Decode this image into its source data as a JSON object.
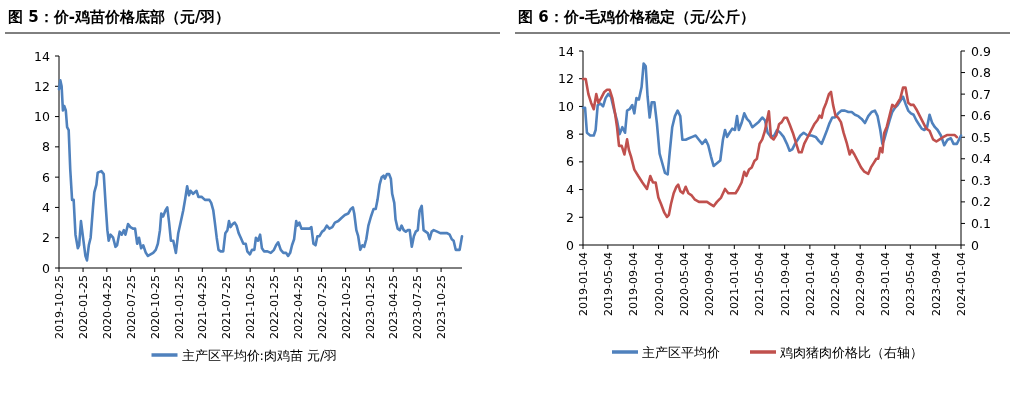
{
  "chart_data": [
    {
      "type": "line",
      "title": "图 5：价-鸡苗价格底部（元/羽）",
      "legend": "bottom",
      "xlim": [
        "2019-10-25",
        "2024-01-13"
      ],
      "ylim": [
        0,
        14
      ],
      "yticks": [
        0,
        2,
        4,
        6,
        8,
        10,
        12,
        14
      ],
      "xticks": [
        "2019-10-25",
        "2020-01-25",
        "2020-04-25",
        "2020-07-25",
        "2020-10-25",
        "2021-01-25",
        "2021-04-25",
        "2021-07-25",
        "2021-10-25",
        "2022-01-25",
        "2022-04-25",
        "2022-07-25",
        "2022-10-25",
        "2023-01-25",
        "2023-04-25",
        "2023-07-25",
        "2023-10-25"
      ],
      "x": [
        "2019-10-25",
        "2019-10-30",
        "2019-11-04",
        "2019-11-09",
        "2019-11-14",
        "2019-11-20",
        "2019-11-25",
        "2019-12-01",
        "2019-12-07",
        "2019-12-14",
        "2019-12-20",
        "2019-12-27",
        "2020-01-05",
        "2020-01-10",
        "2020-01-17",
        "2020-01-25",
        "2020-02-03",
        "2020-02-09",
        "2020-02-16",
        "2020-02-23",
        "2020-03-03",
        "2020-03-08",
        "2020-03-16",
        "2020-03-21",
        "2020-04-04",
        "2020-04-13",
        "2020-04-21",
        "2020-04-27",
        "2020-05-02",
        "2020-05-09",
        "2020-05-19",
        "2020-05-28",
        "2020-06-03",
        "2020-06-13",
        "2020-06-21",
        "2020-06-29",
        "2020-07-05",
        "2020-07-15",
        "2020-07-24",
        "2020-08-03",
        "2020-08-11",
        "2020-08-19",
        "2020-08-26",
        "2020-09-03",
        "2020-09-11",
        "2020-09-21",
        "2020-09-29",
        "2020-10-09",
        "2020-10-19",
        "2020-10-29",
        "2020-11-06",
        "2020-11-14",
        "2020-11-19",
        "2020-11-26",
        "2020-12-05",
        "2020-12-12",
        "2020-12-19",
        "2020-12-26",
        "2021-01-04",
        "2021-01-14",
        "2021-01-23",
        "2021-02-01",
        "2021-02-11",
        "2021-02-19",
        "2021-02-26",
        "2021-03-05",
        "2021-03-11",
        "2021-03-21",
        "2021-04-03",
        "2021-04-10",
        "2021-04-22",
        "2021-05-05",
        "2021-05-22",
        "2021-05-29",
        "2021-06-06",
        "2021-06-12",
        "2021-06-19",
        "2021-06-26",
        "2021-07-04",
        "2021-07-14",
        "2021-07-22",
        "2021-07-30",
        "2021-08-05",
        "2021-08-11",
        "2021-08-19",
        "2021-08-27",
        "2021-09-03",
        "2021-09-11",
        "2021-09-19",
        "2021-09-29",
        "2021-10-08",
        "2021-10-14",
        "2021-10-24",
        "2021-11-01",
        "2021-11-10",
        "2021-11-16",
        "2021-11-24",
        "2021-12-02",
        "2021-12-09",
        "2021-12-17",
        "2021-12-30",
        "2022-01-12",
        "2022-01-24",
        "2022-02-01",
        "2022-02-09",
        "2022-02-19",
        "2022-03-01",
        "2022-03-11",
        "2022-03-19",
        "2022-03-27",
        "2022-04-03",
        "2022-04-11",
        "2022-04-19",
        "2022-04-24",
        "2022-05-01",
        "2022-05-09",
        "2022-05-19",
        "2022-05-30",
        "2022-06-09",
        "2022-06-16",
        "2022-06-24",
        "2022-07-02",
        "2022-07-09",
        "2022-07-17",
        "2022-07-27",
        "2022-08-04",
        "2022-08-14",
        "2022-08-24",
        "2022-09-04",
        "2022-09-14",
        "2022-09-27",
        "2022-10-09",
        "2022-10-22",
        "2022-11-04",
        "2022-11-14",
        "2022-11-22",
        "2022-11-27",
        "2022-12-05",
        "2022-12-12",
        "2022-12-20",
        "2022-12-28",
        "2023-01-04",
        "2023-01-12",
        "2023-01-20",
        "2023-01-30",
        "2023-02-09",
        "2023-02-17",
        "2023-02-24",
        "2023-03-04",
        "2023-03-12",
        "2023-03-19",
        "2023-03-24",
        "2023-04-01",
        "2023-04-09",
        "2023-04-16",
        "2023-04-21",
        "2023-04-29",
        "2023-05-04",
        "2023-05-12",
        "2023-05-20",
        "2023-05-27",
        "2023-06-04",
        "2023-06-12",
        "2023-06-19",
        "2023-06-27",
        "2023-07-05",
        "2023-07-13",
        "2023-07-20",
        "2023-07-28",
        "2023-08-04",
        "2023-08-12",
        "2023-08-19",
        "2023-08-27",
        "2023-09-04",
        "2023-09-11",
        "2023-09-19",
        "2023-09-27",
        "2023-10-10",
        "2023-10-22",
        "2023-11-04",
        "2023-11-17",
        "2023-11-27",
        "2023-12-05",
        "2023-12-12",
        "2023-12-20",
        "2023-12-28",
        "2024-01-04",
        "2024-01-13"
      ],
      "series": [
        {
          "name": "主产区平均价:肉鸡苗 元/羽",
          "color": "#4f81bd",
          "values": [
            11.8,
            12.4,
            12.0,
            10.4,
            10.7,
            10.4,
            9.3,
            9.1,
            6.5,
            4.5,
            4.5,
            2.2,
            1.3,
            1.5,
            3.1,
            2.0,
            0.8,
            0.5,
            1.5,
            2.0,
            4.0,
            5.0,
            5.5,
            6.3,
            6.4,
            6.2,
            4.0,
            2.5,
            1.8,
            2.2,
            2.0,
            1.4,
            1.5,
            2.4,
            2.2,
            2.5,
            2.2,
            2.9,
            2.7,
            2.6,
            2.6,
            1.6,
            2.0,
            1.3,
            1.5,
            1.0,
            0.8,
            0.9,
            1.0,
            1.2,
            1.6,
            2.5,
            3.6,
            3.4,
            3.8,
            4.0,
            3.0,
            1.8,
            1.8,
            1.0,
            2.3,
            3.0,
            3.8,
            4.6,
            5.4,
            4.8,
            5.1,
            4.9,
            5.1,
            4.7,
            4.7,
            4.5,
            4.5,
            4.3,
            3.8,
            3.0,
            2.0,
            1.2,
            1.1,
            1.1,
            2.3,
            2.5,
            3.1,
            2.7,
            2.9,
            3.0,
            2.8,
            2.3,
            2.0,
            1.6,
            1.6,
            1.1,
            0.9,
            1.2,
            1.2,
            2.0,
            1.8,
            2.2,
            1.3,
            1.1,
            1.1,
            1.0,
            1.2,
            1.5,
            1.7,
            1.2,
            1.0,
            1.0,
            0.8,
            1.0,
            1.5,
            1.9,
            3.1,
            2.8,
            3.0,
            2.6,
            2.6,
            2.6,
            2.6,
            2.7,
            1.6,
            1.5,
            2.1,
            2.1,
            2.4,
            2.5,
            2.8,
            2.6,
            2.7,
            3.0,
            3.1,
            3.3,
            3.5,
            3.6,
            3.9,
            4.0,
            3.6,
            2.5,
            2.1,
            1.2,
            1.5,
            1.4,
            1.9,
            2.8,
            3.4,
            3.9,
            3.9,
            4.5,
            5.5,
            6.0,
            6.1,
            5.9,
            6.2,
            6.2,
            5.9,
            4.9,
            4.3,
            3.2,
            2.6,
            2.5,
            2.8,
            2.5,
            2.4,
            2.5,
            2.5,
            1.4,
            2.1,
            2.4,
            2.5,
            3.8,
            4.1,
            2.5,
            2.4,
            2.3,
            1.9,
            2.4,
            2.5,
            2.4,
            2.3,
            2.3,
            2.3,
            2.2,
            1.9,
            1.8,
            1.2,
            1.2,
            1.2,
            2.1
          ]
        }
      ]
    },
    {
      "type": "line",
      "title": "图 6：价-毛鸡价格稳定（元/公斤）",
      "legend": "bottom",
      "xlim": [
        "2019-01-04",
        "2024-01-04"
      ],
      "ylim": [
        0,
        14
      ],
      "yticks": [
        0,
        2,
        4,
        6,
        8,
        10,
        12,
        14
      ],
      "y2lim": [
        0,
        0.9
      ],
      "y2ticks": [
        0,
        0.1,
        0.2,
        0.3,
        0.4,
        0.5,
        0.6,
        0.7,
        0.8,
        0.9
      ],
      "xticks": [
        "2019-01-04",
        "2019-05-04",
        "2019-09-04",
        "2020-01-04",
        "2020-05-04",
        "2020-09-04",
        "2021-01-04",
        "2021-05-04",
        "2021-09-04",
        "2022-01-04",
        "2022-05-04",
        "2022-09-04",
        "2023-01-04",
        "2023-05-04",
        "2023-09-04",
        "2024-01-04"
      ],
      "series": [
        {
          "name": "主产区平均价",
          "color": "#4f81bd",
          "x": [
            "2019-01-04",
            "2019-01-14",
            "2019-01-23",
            "2019-02-08",
            "2019-02-25",
            "2019-03-06",
            "2019-03-16",
            "2019-03-29",
            "2019-04-11",
            "2019-04-23",
            "2019-05-06",
            "2019-05-19",
            "2019-06-04",
            "2019-06-17",
            "2019-06-30",
            "2019-07-13",
            "2019-07-26",
            "2019-08-05",
            "2019-08-17",
            "2019-08-30",
            "2019-09-09",
            "2019-09-19",
            "2019-10-01",
            "2019-10-14",
            "2019-10-24",
            "2019-11-03",
            "2019-11-12",
            "2019-11-22",
            "2019-12-02",
            "2019-12-15",
            "2019-12-27",
            "2020-01-09",
            "2020-01-22",
            "2020-02-04",
            "2020-02-17",
            "2020-02-27",
            "2020-03-10",
            "2020-03-23",
            "2020-04-05",
            "2020-04-18",
            "2020-04-28",
            "2020-05-14",
            "2020-05-30",
            "2020-06-15",
            "2020-07-01",
            "2020-07-17",
            "2020-08-02",
            "2020-08-18",
            "2020-08-31",
            "2020-09-13",
            "2020-09-26",
            "2020-10-12",
            "2020-10-28",
            "2020-11-10",
            "2020-11-20",
            "2020-11-30",
            "2020-12-12",
            "2020-12-25",
            "2021-01-07",
            "2021-01-17",
            "2021-01-26",
            "2021-02-08",
            "2021-02-21",
            "2021-03-06",
            "2021-03-19",
            "2021-04-01",
            "2021-04-17",
            "2021-05-03",
            "2021-05-19",
            "2021-06-01",
            "2021-06-14",
            "2021-06-30",
            "2021-07-16",
            "2021-07-29",
            "2021-08-14",
            "2021-08-30",
            "2021-09-15",
            "2021-09-28",
            "2021-10-11",
            "2021-10-24",
            "2021-11-06",
            "2021-11-19",
            "2021-12-05",
            "2021-12-24",
            "2022-01-12",
            "2022-02-01",
            "2022-02-17",
            "2022-03-02",
            "2022-03-15",
            "2022-03-28",
            "2022-04-09",
            "2022-04-22",
            "2022-05-05",
            "2022-05-21",
            "2022-06-06",
            "2022-06-22",
            "2022-07-09",
            "2022-07-25",
            "2022-08-10",
            "2022-08-26",
            "2022-09-11",
            "2022-09-27",
            "2022-10-13",
            "2022-10-29",
            "2022-11-14",
            "2022-11-27",
            "2022-12-10",
            "2022-12-20",
            "2022-12-29",
            "2023-01-11",
            "2023-01-24",
            "2023-02-06",
            "2023-02-19",
            "2023-03-04",
            "2023-03-17",
            "2023-03-30",
            "2023-04-11",
            "2023-04-24",
            "2023-05-07",
            "2023-05-20",
            "2023-06-02",
            "2023-06-15",
            "2023-06-28",
            "2023-07-11",
            "2023-07-24",
            "2023-08-05",
            "2023-08-18",
            "2023-08-31",
            "2023-09-13",
            "2023-09-29",
            "2023-10-15",
            "2023-10-31",
            "2023-11-16",
            "2023-11-29",
            "2023-12-15",
            "2024-01-04"
          ],
          "values": [
            9.9,
            9.9,
            8.1,
            7.9,
            7.9,
            8.3,
            10.1,
            10.2,
            10.0,
            10.6,
            10.9,
            10.7,
            9.7,
            9.0,
            8.0,
            8.5,
            8.1,
            9.7,
            9.8,
            10.1,
            9.5,
            10.6,
            10.5,
            11.4,
            13.1,
            12.9,
            10.7,
            9.2,
            10.3,
            10.3,
            8.8,
            6.6,
            5.9,
            5.2,
            5.1,
            6.7,
            8.5,
            9.3,
            9.7,
            9.3,
            7.6,
            7.6,
            7.7,
            7.8,
            7.9,
            7.6,
            7.3,
            7.6,
            7.2,
            6.4,
            5.7,
            5.9,
            6.1,
            7.6,
            8.3,
            7.8,
            8.1,
            8.4,
            8.3,
            9.3,
            8.3,
            8.8,
            9.5,
            9.1,
            8.9,
            8.5,
            8.7,
            8.9,
            9.2,
            9.0,
            8.1,
            7.8,
            7.9,
            8.3,
            8.1,
            7.8,
            7.3,
            6.8,
            6.9,
            7.3,
            7.6,
            7.9,
            8.1,
            7.9,
            7.9,
            7.8,
            7.5,
            7.3,
            7.8,
            8.3,
            8.8,
            9.2,
            9.2,
            9.5,
            9.7,
            9.7,
            9.6,
            9.6,
            9.4,
            9.3,
            9.1,
            8.8,
            9.3,
            9.6,
            9.7,
            9.3,
            8.3,
            7.3,
            7.6,
            8.3,
            9.0,
            9.6,
            9.9,
            10.1,
            10.4,
            10.7,
            10.2,
            9.7,
            9.5,
            9.4,
            9.0,
            8.7,
            8.4,
            8.3,
            8.5,
            9.4,
            8.8,
            8.5,
            8.3,
            7.9,
            7.2,
            7.6,
            7.7,
            7.3,
            7.3,
            7.9
          ]
        },
        {
          "name": "鸡肉猪肉价格比（右轴）",
          "color": "#c0504d",
          "axis": "y2",
          "x": [
            "2019-01-04",
            "2019-01-17",
            "2019-01-30",
            "2019-02-12",
            "2019-02-25",
            "2019-03-09",
            "2019-03-19",
            "2019-04-01",
            "2019-04-17",
            "2019-04-30",
            "2019-05-13",
            "2019-05-26",
            "2019-06-08",
            "2019-06-17",
            "2019-06-27",
            "2019-07-10",
            "2019-07-23",
            "2019-08-05",
            "2019-08-14",
            "2019-08-24",
            "2019-09-09",
            "2019-09-28",
            "2019-10-18",
            "2019-11-09",
            "2019-11-25",
            "2019-12-08",
            "2019-12-21",
            "2020-01-03",
            "2020-01-16",
            "2020-02-01",
            "2020-02-14",
            "2020-02-23",
            "2020-03-04",
            "2020-03-17",
            "2020-03-30",
            "2020-04-08",
            "2020-04-18",
            "2020-05-01",
            "2020-05-14",
            "2020-05-27",
            "2020-06-12",
            "2020-06-28",
            "2020-07-17",
            "2020-08-06",
            "2020-08-25",
            "2020-09-10",
            "2020-09-26",
            "2020-10-12",
            "2020-11-01",
            "2020-11-20",
            "2020-12-06",
            "2020-12-22",
            "2021-01-10",
            "2021-01-23",
            "2021-02-08",
            "2021-02-21",
            "2021-03-03",
            "2021-03-16",
            "2021-03-29",
            "2021-04-11",
            "2021-04-23",
            "2021-05-06",
            "2021-05-19",
            "2021-06-01",
            "2021-06-11",
            "2021-06-20",
            "2021-06-30",
            "2021-07-13",
            "2021-07-26",
            "2021-08-08",
            "2021-08-21",
            "2021-09-02",
            "2021-09-15",
            "2021-09-28",
            "2021-10-14",
            "2021-10-30",
            "2021-11-12",
            "2021-11-25",
            "2021-12-08",
            "2021-12-24",
            "2022-01-09",
            "2022-01-25",
            "2022-02-10",
            "2022-02-20",
            "2022-03-02",
            "2022-03-11",
            "2022-03-24",
            "2022-04-06",
            "2022-04-16",
            "2022-04-26",
            "2022-05-08",
            "2022-05-21",
            "2022-06-03",
            "2022-06-16",
            "2022-07-02",
            "2022-07-15",
            "2022-07-25",
            "2022-08-07",
            "2022-08-23",
            "2022-09-08",
            "2022-09-24",
            "2022-10-13",
            "2022-10-26",
            "2022-11-08",
            "2022-11-21",
            "2022-11-30",
            "2022-12-10",
            "2022-12-20",
            "2022-12-29",
            "2023-01-11",
            "2023-01-24",
            "2023-02-06",
            "2023-02-19",
            "2023-03-04",
            "2023-03-17",
            "2023-03-30",
            "2023-04-11",
            "2023-04-24",
            "2023-05-07",
            "2023-05-20",
            "2023-06-02",
            "2023-06-18",
            "2023-07-04",
            "2023-07-20",
            "2023-08-05",
            "2023-08-22",
            "2023-09-07",
            "2023-09-23",
            "2023-10-09",
            "2023-10-28",
            "2023-11-16",
            "2023-12-05",
            "2023-12-15"
          ],
          "values": [
            0.77,
            0.77,
            0.7,
            0.66,
            0.63,
            0.7,
            0.66,
            0.68,
            0.71,
            0.72,
            0.72,
            0.68,
            0.61,
            0.55,
            0.46,
            0.46,
            0.42,
            0.49,
            0.44,
            0.41,
            0.35,
            0.32,
            0.29,
            0.26,
            0.32,
            0.29,
            0.29,
            0.22,
            0.19,
            0.15,
            0.13,
            0.14,
            0.19,
            0.24,
            0.27,
            0.28,
            0.25,
            0.24,
            0.27,
            0.24,
            0.23,
            0.21,
            0.2,
            0.2,
            0.2,
            0.19,
            0.18,
            0.2,
            0.22,
            0.26,
            0.24,
            0.24,
            0.24,
            0.26,
            0.29,
            0.34,
            0.32,
            0.35,
            0.36,
            0.39,
            0.4,
            0.47,
            0.49,
            0.53,
            0.58,
            0.62,
            0.5,
            0.49,
            0.51,
            0.56,
            0.57,
            0.59,
            0.59,
            0.56,
            0.52,
            0.47,
            0.43,
            0.43,
            0.47,
            0.5,
            0.53,
            0.56,
            0.58,
            0.6,
            0.59,
            0.63,
            0.66,
            0.7,
            0.71,
            0.65,
            0.6,
            0.59,
            0.57,
            0.52,
            0.47,
            0.42,
            0.44,
            0.42,
            0.39,
            0.36,
            0.34,
            0.33,
            0.36,
            0.38,
            0.4,
            0.4,
            0.45,
            0.43,
            0.52,
            0.55,
            0.6,
            0.65,
            0.64,
            0.66,
            0.68,
            0.73,
            0.73,
            0.66,
            0.65,
            0.65,
            0.63,
            0.6,
            0.57,
            0.54,
            0.53,
            0.49,
            0.48,
            0.49,
            0.5,
            0.51,
            0.51,
            0.51,
            0.5
          ]
        }
      ]
    }
  ]
}
